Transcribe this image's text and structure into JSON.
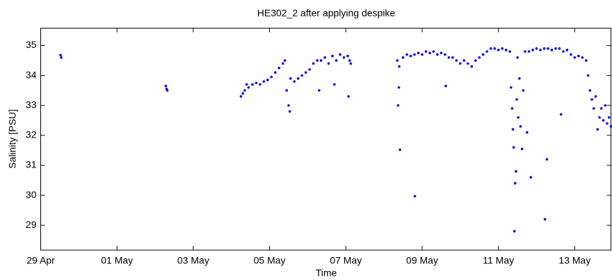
{
  "chart_data": {
    "type": "scatter",
    "title": "HE302_2 after applying despike",
    "xlabel": "Time",
    "ylabel": "Salinity [PSU]",
    "xlim": [
      0,
      14.95
    ],
    "ylim": [
      28.17,
      35.58
    ],
    "xticks": [
      {
        "value": 0,
        "label": "29 Apr"
      },
      {
        "value": 2,
        "label": "01 May"
      },
      {
        "value": 4,
        "label": "03 May"
      },
      {
        "value": 6,
        "label": "05 May"
      },
      {
        "value": 8,
        "label": "07 May"
      },
      {
        "value": 10,
        "label": "09 May"
      },
      {
        "value": 12,
        "label": "11 May"
      },
      {
        "value": 14,
        "label": "13 May"
      }
    ],
    "yticks": [
      29,
      30,
      31,
      32,
      33,
      34,
      35
    ],
    "grid": false,
    "series": [
      {
        "color": "#0000ff",
        "x": [
          0.52,
          0.54,
          3.28,
          3.3,
          3.32,
          5.25,
          5.3,
          5.35,
          5.4,
          5.45,
          5.55,
          5.65,
          5.75,
          5.85,
          5.95,
          6.05,
          6.15,
          6.25,
          6.35,
          6.4,
          6.45,
          6.5,
          6.53,
          6.55,
          6.65,
          6.75,
          6.85,
          6.95,
          7.05,
          7.15,
          7.25,
          7.3,
          7.35,
          7.45,
          7.55,
          7.65,
          7.7,
          7.75,
          7.85,
          7.95,
          8.05,
          8.07,
          8.1,
          8.13,
          9.35,
          9.37,
          9.39,
          9.4,
          9.42,
          9.5,
          9.6,
          9.7,
          9.8,
          9.81,
          9.9,
          10.0,
          10.1,
          10.2,
          10.3,
          10.4,
          10.5,
          10.6,
          10.62,
          10.7,
          10.8,
          10.9,
          11.0,
          11.1,
          11.2,
          11.3,
          11.4,
          11.5,
          11.6,
          11.7,
          11.8,
          11.9,
          12.0,
          12.1,
          12.2,
          12.3,
          12.33,
          12.36,
          12.38,
          12.4,
          12.42,
          12.44,
          12.46,
          12.48,
          12.5,
          12.52,
          12.55,
          12.58,
          12.62,
          12.65,
          12.7,
          12.75,
          12.8,
          12.85,
          12.9,
          13.0,
          13.1,
          13.2,
          13.22,
          13.27,
          13.3,
          13.4,
          13.5,
          13.6,
          13.64,
          13.7,
          13.8,
          13.9,
          14.0,
          14.1,
          14.2,
          14.3,
          14.35,
          14.4,
          14.45,
          14.5,
          14.55,
          14.6,
          14.65,
          14.7,
          14.75,
          14.8,
          14.85,
          14.9,
          14.95
        ],
        "values": [
          34.68,
          34.6,
          33.65,
          33.55,
          33.5,
          33.3,
          33.4,
          33.5,
          33.7,
          33.6,
          33.7,
          33.75,
          33.7,
          33.8,
          33.85,
          33.95,
          34.1,
          34.25,
          34.4,
          34.5,
          33.5,
          33.0,
          32.8,
          33.9,
          33.8,
          33.9,
          34.0,
          34.1,
          34.2,
          34.4,
          34.5,
          33.5,
          34.5,
          34.6,
          34.4,
          34.65,
          33.7,
          34.5,
          34.7,
          34.6,
          34.65,
          33.3,
          34.5,
          34.4,
          34.5,
          33.0,
          33.6,
          34.3,
          31.52,
          34.6,
          34.7,
          34.65,
          34.7,
          29.97,
          34.75,
          34.7,
          34.8,
          34.75,
          34.8,
          34.7,
          34.75,
          34.7,
          33.65,
          34.6,
          34.6,
          34.5,
          34.4,
          34.5,
          34.4,
          34.3,
          34.5,
          34.6,
          34.7,
          34.8,
          34.9,
          34.9,
          34.85,
          34.9,
          34.85,
          34.8,
          33.6,
          32.9,
          32.2,
          31.6,
          28.8,
          30.4,
          30.8,
          33.2,
          34.6,
          32.6,
          33.9,
          32.3,
          31.55,
          33.5,
          34.8,
          32.1,
          34.8,
          30.6,
          34.85,
          34.9,
          34.85,
          34.9,
          29.2,
          31.2,
          34.9,
          34.85,
          34.9,
          34.9,
          32.7,
          34.8,
          34.85,
          34.7,
          34.6,
          34.65,
          34.6,
          34.5,
          34.0,
          33.5,
          33.2,
          32.9,
          33.3,
          32.2,
          32.6,
          32.9,
          32.5,
          33.0,
          32.4,
          32.6,
          32.3
        ]
      }
    ]
  }
}
